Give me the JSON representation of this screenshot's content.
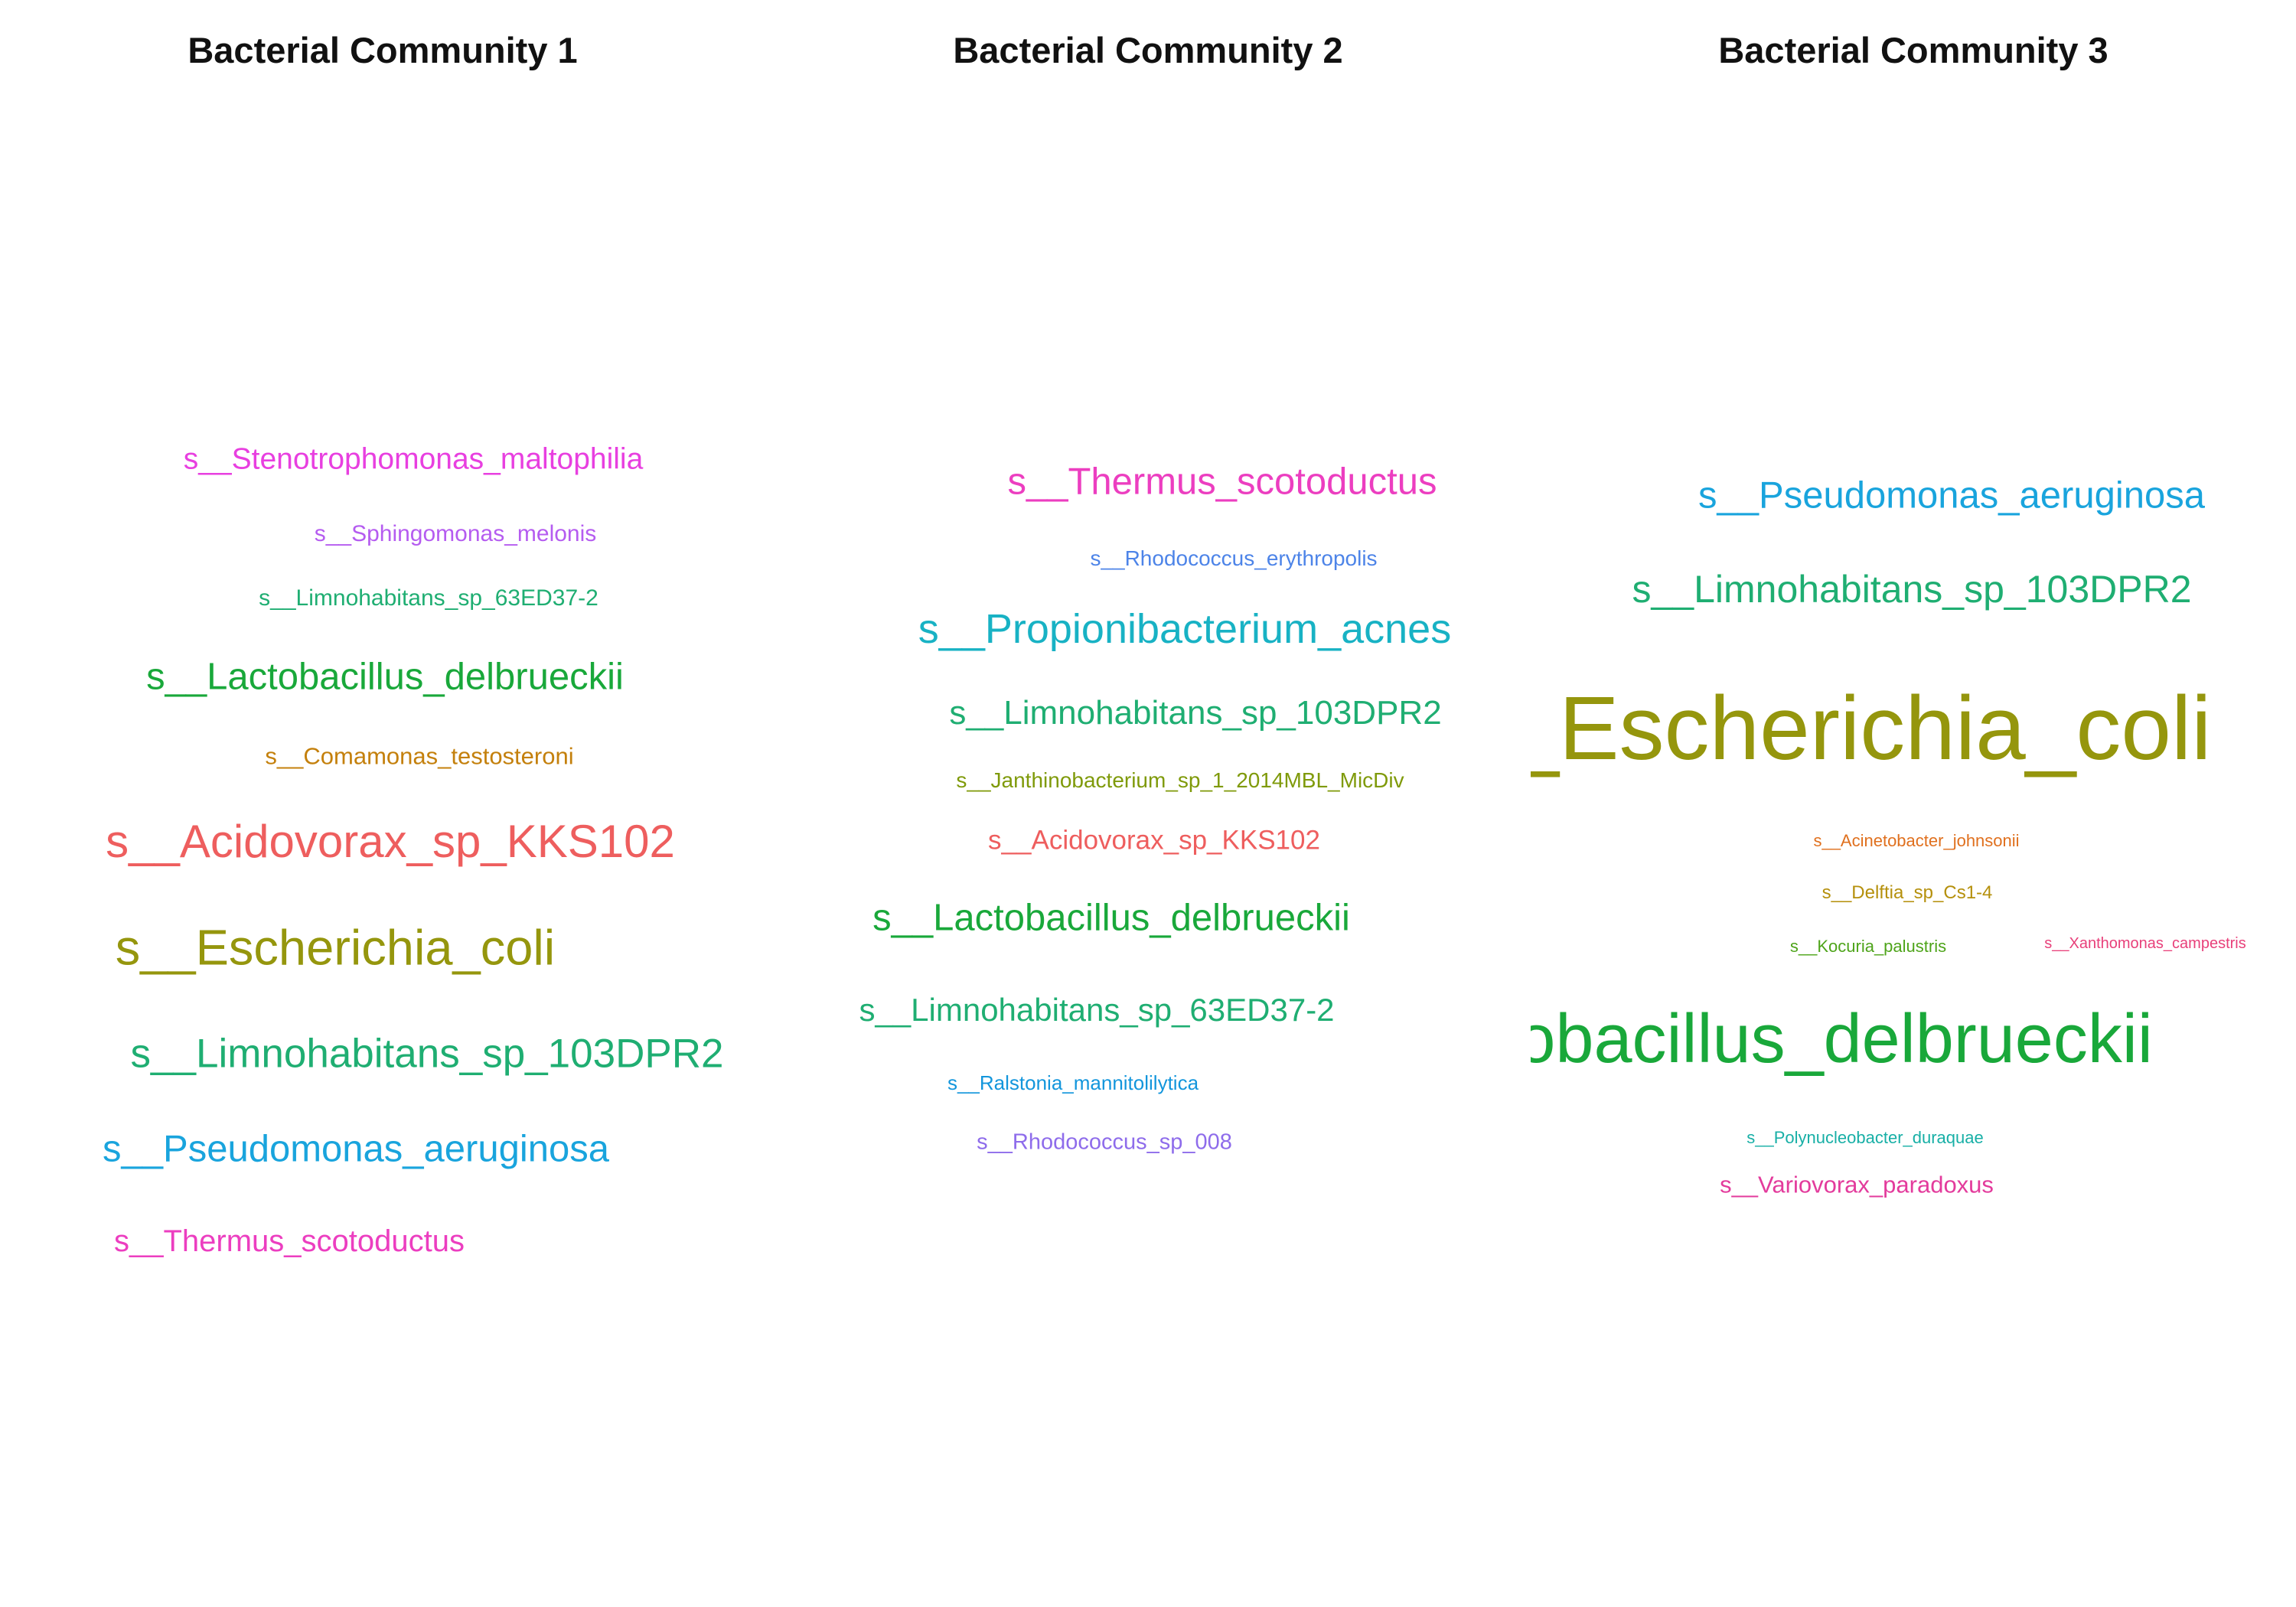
{
  "panels": [
    {
      "title": "Bacterial Community 1",
      "words": [
        {
          "text": "s__Stenotrophomonas_maltophilia",
          "weight": 2,
          "color": "#E83FE0"
        },
        {
          "text": "s__Sphingomonas_melonis",
          "weight": 1,
          "color": "#B55CF0"
        },
        {
          "text": "s__Limnohabitans_sp_63ED37-2",
          "weight": 1,
          "color": "#1FAE72"
        },
        {
          "text": "s__Lactobacillus_delbrueckii",
          "weight": 3,
          "color": "#19A83A"
        },
        {
          "text": "s__Comamonas_testosteroni",
          "weight": 1,
          "color": "#C4800C"
        },
        {
          "text": "s__Acidovorax_sp_KKS102",
          "weight": 4,
          "color": "#EE5E5E"
        },
        {
          "text": "s__Escherichia_coli",
          "weight": 4,
          "color": "#95960D"
        },
        {
          "text": "s__Limnohabitans_sp_103DPR2",
          "weight": 3,
          "color": "#1FAE72"
        },
        {
          "text": "s__Pseudomonas_aeruginosa",
          "weight": 3,
          "color": "#19A4DD"
        },
        {
          "text": "s__Thermus_scotoductus",
          "weight": 2,
          "color": "#EC3EC0"
        }
      ]
    },
    {
      "title": "Bacterial Community 2",
      "words": [
        {
          "text": "s__Thermus_scotoductus",
          "weight": 3,
          "color": "#EC3EC0"
        },
        {
          "text": "s__Rhodococcus_erythropolis",
          "weight": 1,
          "color": "#4D84E8"
        },
        {
          "text": "s__Propionibacterium_acnes",
          "weight": 4,
          "color": "#18B2C4"
        },
        {
          "text": "s__Limnohabitans_sp_103DPR2",
          "weight": 3,
          "color": "#1FAE72"
        },
        {
          "text": "s__Janthinobacterium_sp_1_2014MBL_MicDiv",
          "weight": 1,
          "color": "#7F9A0A"
        },
        {
          "text": "s__Acidovorax_sp_KKS102",
          "weight": 2,
          "color": "#EE5E5E"
        },
        {
          "text": "s__Lactobacillus_delbrueckii",
          "weight": 4,
          "color": "#19A83A"
        },
        {
          "text": "s__Limnohabitans_sp_63ED37-2",
          "weight": 3,
          "color": "#1FAE72"
        },
        {
          "text": "s__Ralstonia_mannitolilytica",
          "weight": 1,
          "color": "#1396DC"
        },
        {
          "text": "s__Rhodococcus_sp_008",
          "weight": 1,
          "color": "#8E6CEB"
        }
      ]
    },
    {
      "title": "Bacterial Community 3",
      "words": [
        {
          "text": "s__Pseudomonas_aeruginosa",
          "weight": 3,
          "color": "#19A4DD"
        },
        {
          "text": "s__Limnohabitans_sp_103DPR2",
          "weight": 3,
          "color": "#1FAE72"
        },
        {
          "text": "s__Escherichia_coli",
          "weight": 6,
          "color": "#95960D"
        },
        {
          "text": "s__Acinetobacter_johnsonii",
          "weight": 1,
          "color": "#E0701E"
        },
        {
          "text": "s__Delftia_sp_Cs1-4",
          "weight": 1,
          "color": "#B5900C"
        },
        {
          "text": "s__Kocuria_palustris",
          "weight": 1,
          "color": "#4EA41A"
        },
        {
          "text": "s__Xanthomonas_campestris",
          "weight": 1,
          "color": "#E8407A"
        },
        {
          "text": "s__Lactobacillus_delbrueckii",
          "weight": 5,
          "color": "#19A83A"
        },
        {
          "text": "s__Polynucleobacter_duraquae",
          "weight": 1,
          "color": "#17AFA6"
        },
        {
          "text": "s__Variovorax_paradoxus",
          "weight": 1,
          "color": "#E33B9C"
        }
      ]
    }
  ]
}
